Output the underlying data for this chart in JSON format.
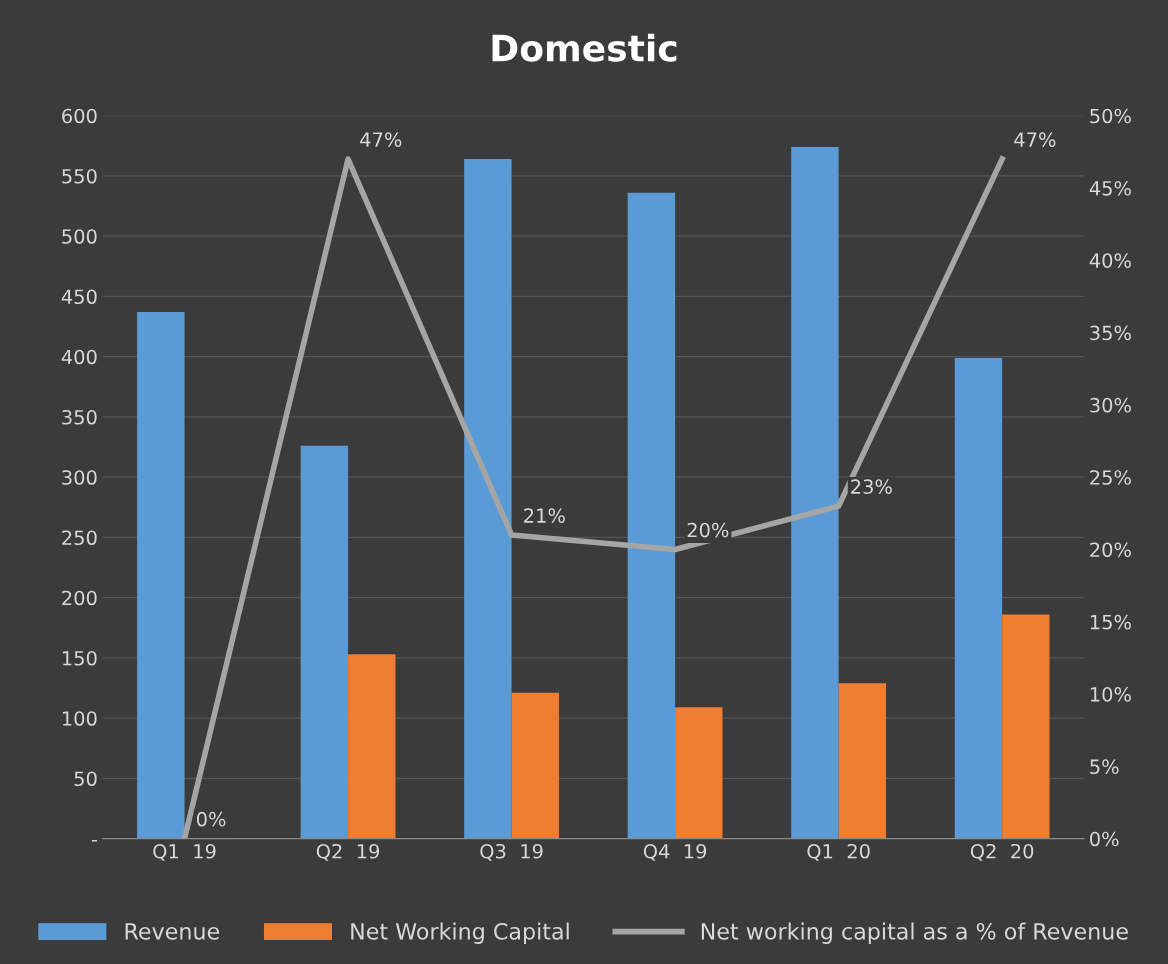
{
  "chart_data": {
    "type": "bar",
    "title": "Domestic",
    "categories": [
      "Q1  19",
      "Q2  19",
      "Q3  19",
      "Q4  19",
      "Q1  20",
      "Q2  20"
    ],
    "series": [
      {
        "name": "Revenue",
        "color": "#5b9bd5",
        "values": [
          437,
          326,
          564,
          536,
          574,
          399
        ]
      },
      {
        "name": "Net Working Capital",
        "color": "#ed7d31",
        "values": [
          0,
          153,
          121,
          109,
          129,
          186
        ]
      },
      {
        "name": "Net working capital as a % of Revenue",
        "type": "line",
        "axis": "y2",
        "color": "#a5a5a5",
        "values": [
          0,
          47,
          21,
          20,
          23,
          47
        ],
        "data_labels": true,
        "value_labels": [
          "0%",
          "47%",
          "21%",
          "20%",
          "23%",
          "47%"
        ]
      }
    ],
    "ylim": [
      0,
      600
    ],
    "yticks": [
      {
        "value": 0,
        "label": "-"
      },
      50,
      100,
      150,
      200,
      250,
      300,
      350,
      400,
      450,
      500,
      550,
      600
    ],
    "y2lim": [
      0,
      50
    ],
    "y2ticks": [
      {
        "value": 0,
        "label": "0%"
      },
      {
        "value": 5,
        "label": "5%"
      },
      {
        "value": 10,
        "label": "10%"
      },
      {
        "value": 15,
        "label": "15%"
      },
      {
        "value": 20,
        "label": "20%"
      },
      {
        "value": 25,
        "label": "25%"
      },
      {
        "value": 30,
        "label": "30%"
      },
      {
        "value": 35,
        "label": "35%"
      },
      {
        "value": 40,
        "label": "40%"
      },
      {
        "value": 45,
        "label": "45%"
      },
      {
        "value": 50,
        "label": "50%"
      }
    ],
    "grid": "y",
    "legend": "bottom",
    "marker": "none",
    "line_style": "solid"
  }
}
